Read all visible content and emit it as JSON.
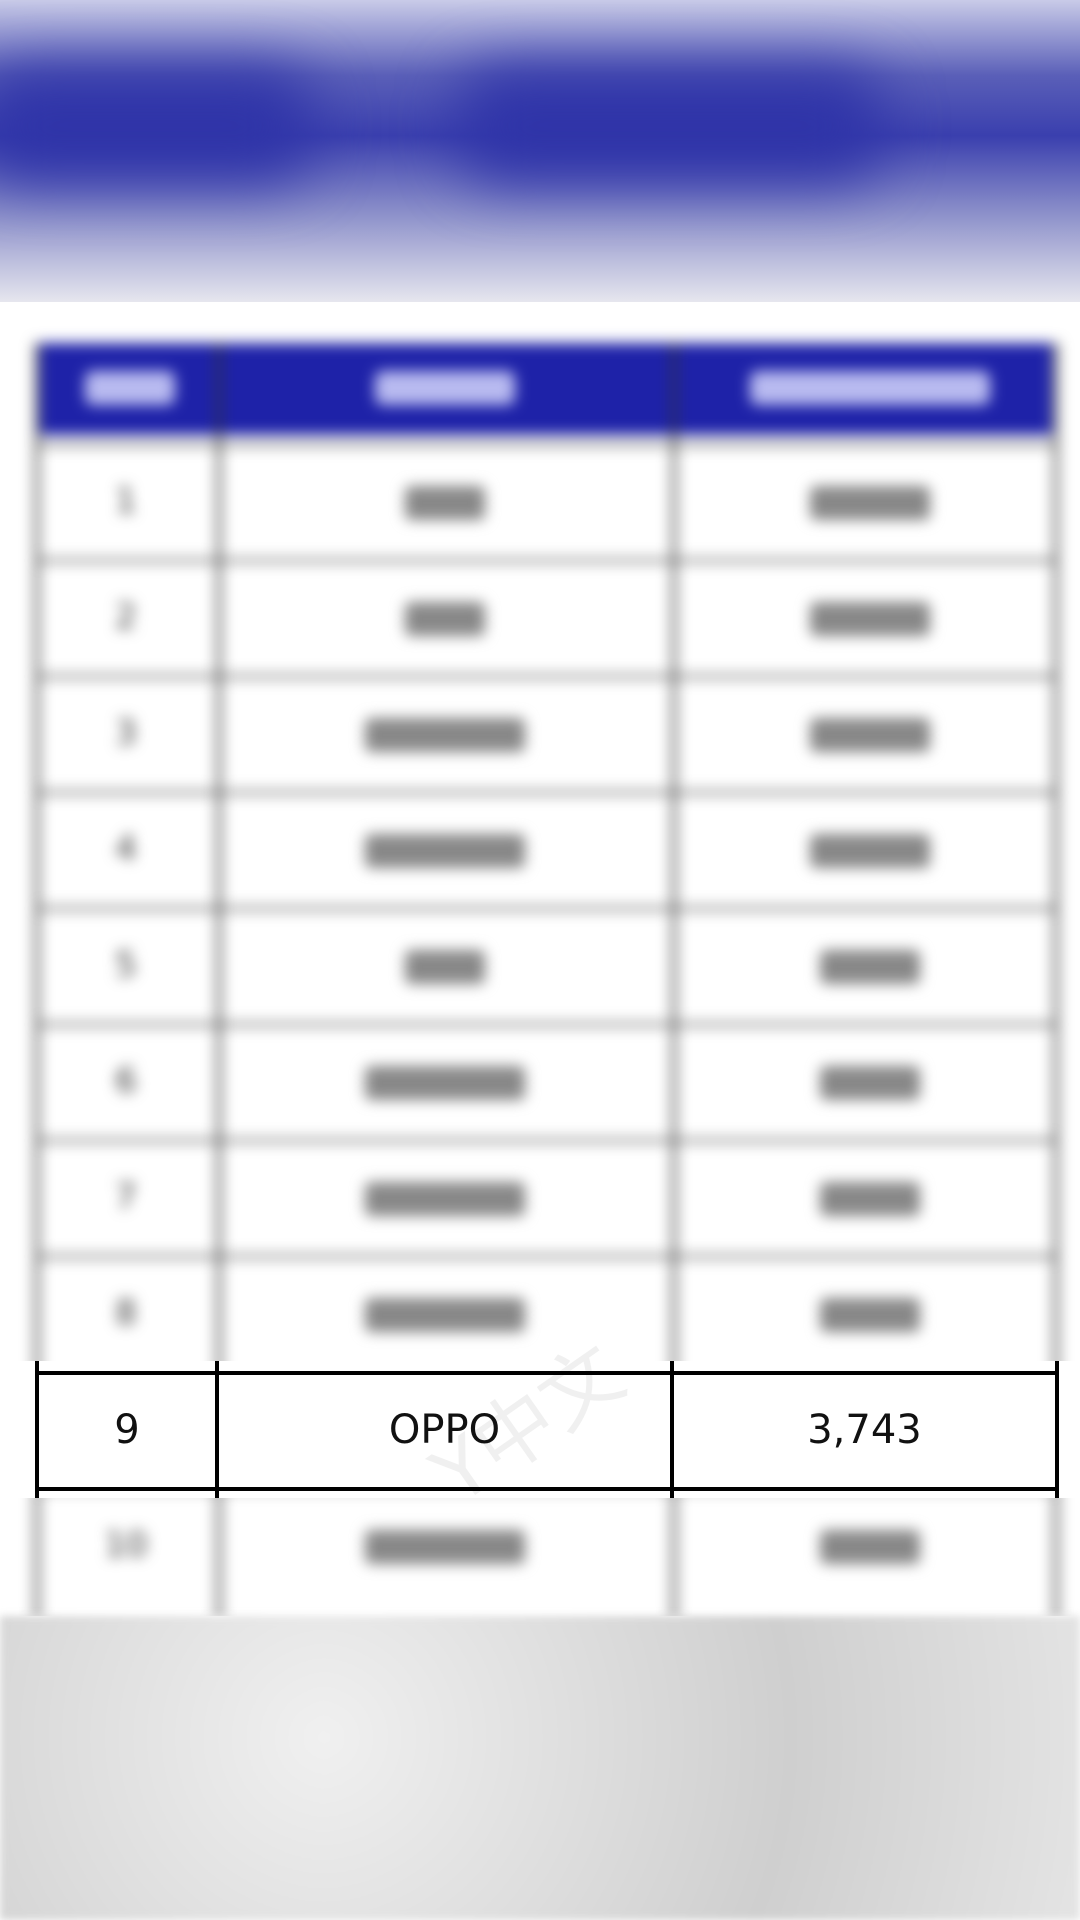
{
  "table": {
    "header_color": "#1e22a8",
    "ranks": [
      "1",
      "2",
      "3",
      "4",
      "5",
      "6",
      "7",
      "8"
    ],
    "rank_10": "10",
    "highlighted_row": {
      "rank": "9",
      "name": "OPPO",
      "value": "3,743"
    },
    "watermark": "Y中文"
  }
}
